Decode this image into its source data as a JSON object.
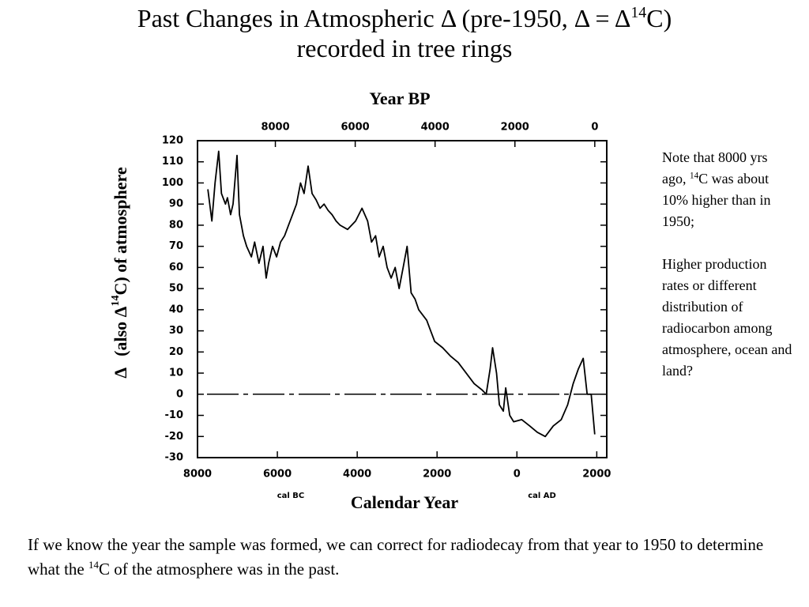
{
  "header": {
    "title": [
      "Past Changes in Atmospheric Δ (pre-1950, Δ = Δ",
      "14",
      "C)",
      "recorded in tree rings"
    ]
  },
  "chart_data": {
    "type": "line",
    "x2_label": "Year BP",
    "x_label": "Calendar Year",
    "x_sublabels": [
      "cal BC",
      "cal AD"
    ],
    "y_label": [
      "Δ",
      "(also Δ",
      "14",
      "C) of atmosphere"
    ],
    "x": [
      -7740,
      -7640,
      -7560,
      -7470,
      -7400,
      -7300,
      -7250,
      -7170,
      -7110,
      -7010,
      -6950,
      -6850,
      -6770,
      -6650,
      -6570,
      -6460,
      -6360,
      -6280,
      -6220,
      -6120,
      -6020,
      -5920,
      -5820,
      -5720,
      -5620,
      -5520,
      -5420,
      -5330,
      -5230,
      -5130,
      -5030,
      -4930,
      -4830,
      -4730,
      -4630,
      -4530,
      -4430,
      -4240,
      -4040,
      -3880,
      -3740,
      -3640,
      -3540,
      -3450,
      -3350,
      -3250,
      -3150,
      -3050,
      -2950,
      -2850,
      -2750,
      -2650,
      -2550,
      -2460,
      -2260,
      -2160,
      -2060,
      -1860,
      -1660,
      -1470,
      -1270,
      -1070,
      -870,
      -770,
      -670,
      -610,
      -510,
      -440,
      -340,
      -280,
      -180,
      -80,
      120,
      320,
      510,
      710,
      910,
      1110,
      1270,
      1410,
      1540,
      1660,
      1760,
      1860,
      1950
    ],
    "series": [
      {
        "name": "Δ14C",
        "color": "#000000",
        "values": [
          97,
          82,
          100,
          115,
          95,
          90,
          93,
          85,
          90,
          113,
          85,
          75,
          70,
          65,
          72,
          62,
          70,
          55,
          62,
          70,
          65,
          72,
          75,
          80,
          85,
          90,
          100,
          95,
          108,
          95,
          92,
          88,
          90,
          87,
          85,
          82,
          80,
          78,
          82,
          88,
          82,
          72,
          75,
          65,
          70,
          60,
          55,
          60,
          50,
          60,
          70,
          48,
          45,
          40,
          35,
          30,
          25,
          22,
          18,
          15,
          10,
          5,
          2,
          0,
          12,
          22,
          10,
          -5,
          -8,
          3,
          -10,
          -13,
          -12,
          -15,
          -18,
          -20,
          -15,
          -12,
          -5,
          5,
          12,
          17,
          0,
          0,
          -19
        ]
      }
    ],
    "xlim": [
      -8000,
      2250
    ],
    "xticks": [
      {
        "value": -8000,
        "label": "8000"
      },
      {
        "value": -6000,
        "label": "6000"
      },
      {
        "value": -4000,
        "label": "4000"
      },
      {
        "value": -2000,
        "label": "2000"
      },
      0,
      2000
    ],
    "x2lim": [
      9950,
      -300
    ],
    "x2ticks": [
      8000,
      6000,
      4000,
      2000,
      0
    ],
    "ylim": [
      -30,
      120
    ],
    "yticks": [
      -30,
      -20,
      -10,
      0,
      10,
      20,
      30,
      40,
      50,
      60,
      70,
      80,
      90,
      100,
      110,
      120
    ],
    "reference_line": 0
  },
  "note": {
    "paragraphs": [
      [
        "Note that 8000 yrs ago, ",
        "14",
        "C was about 10% higher than in 1950;"
      ],
      [
        "Higher production rates or different distribution of radiocarbon among atmosphere, ocean and land?"
      ]
    ]
  },
  "footer": [
    "If we know the year the sample was formed, we can correct for radiodecay from that year to 1950 to determine what the ",
    "14",
    "C of the atmosphere was in the past."
  ]
}
